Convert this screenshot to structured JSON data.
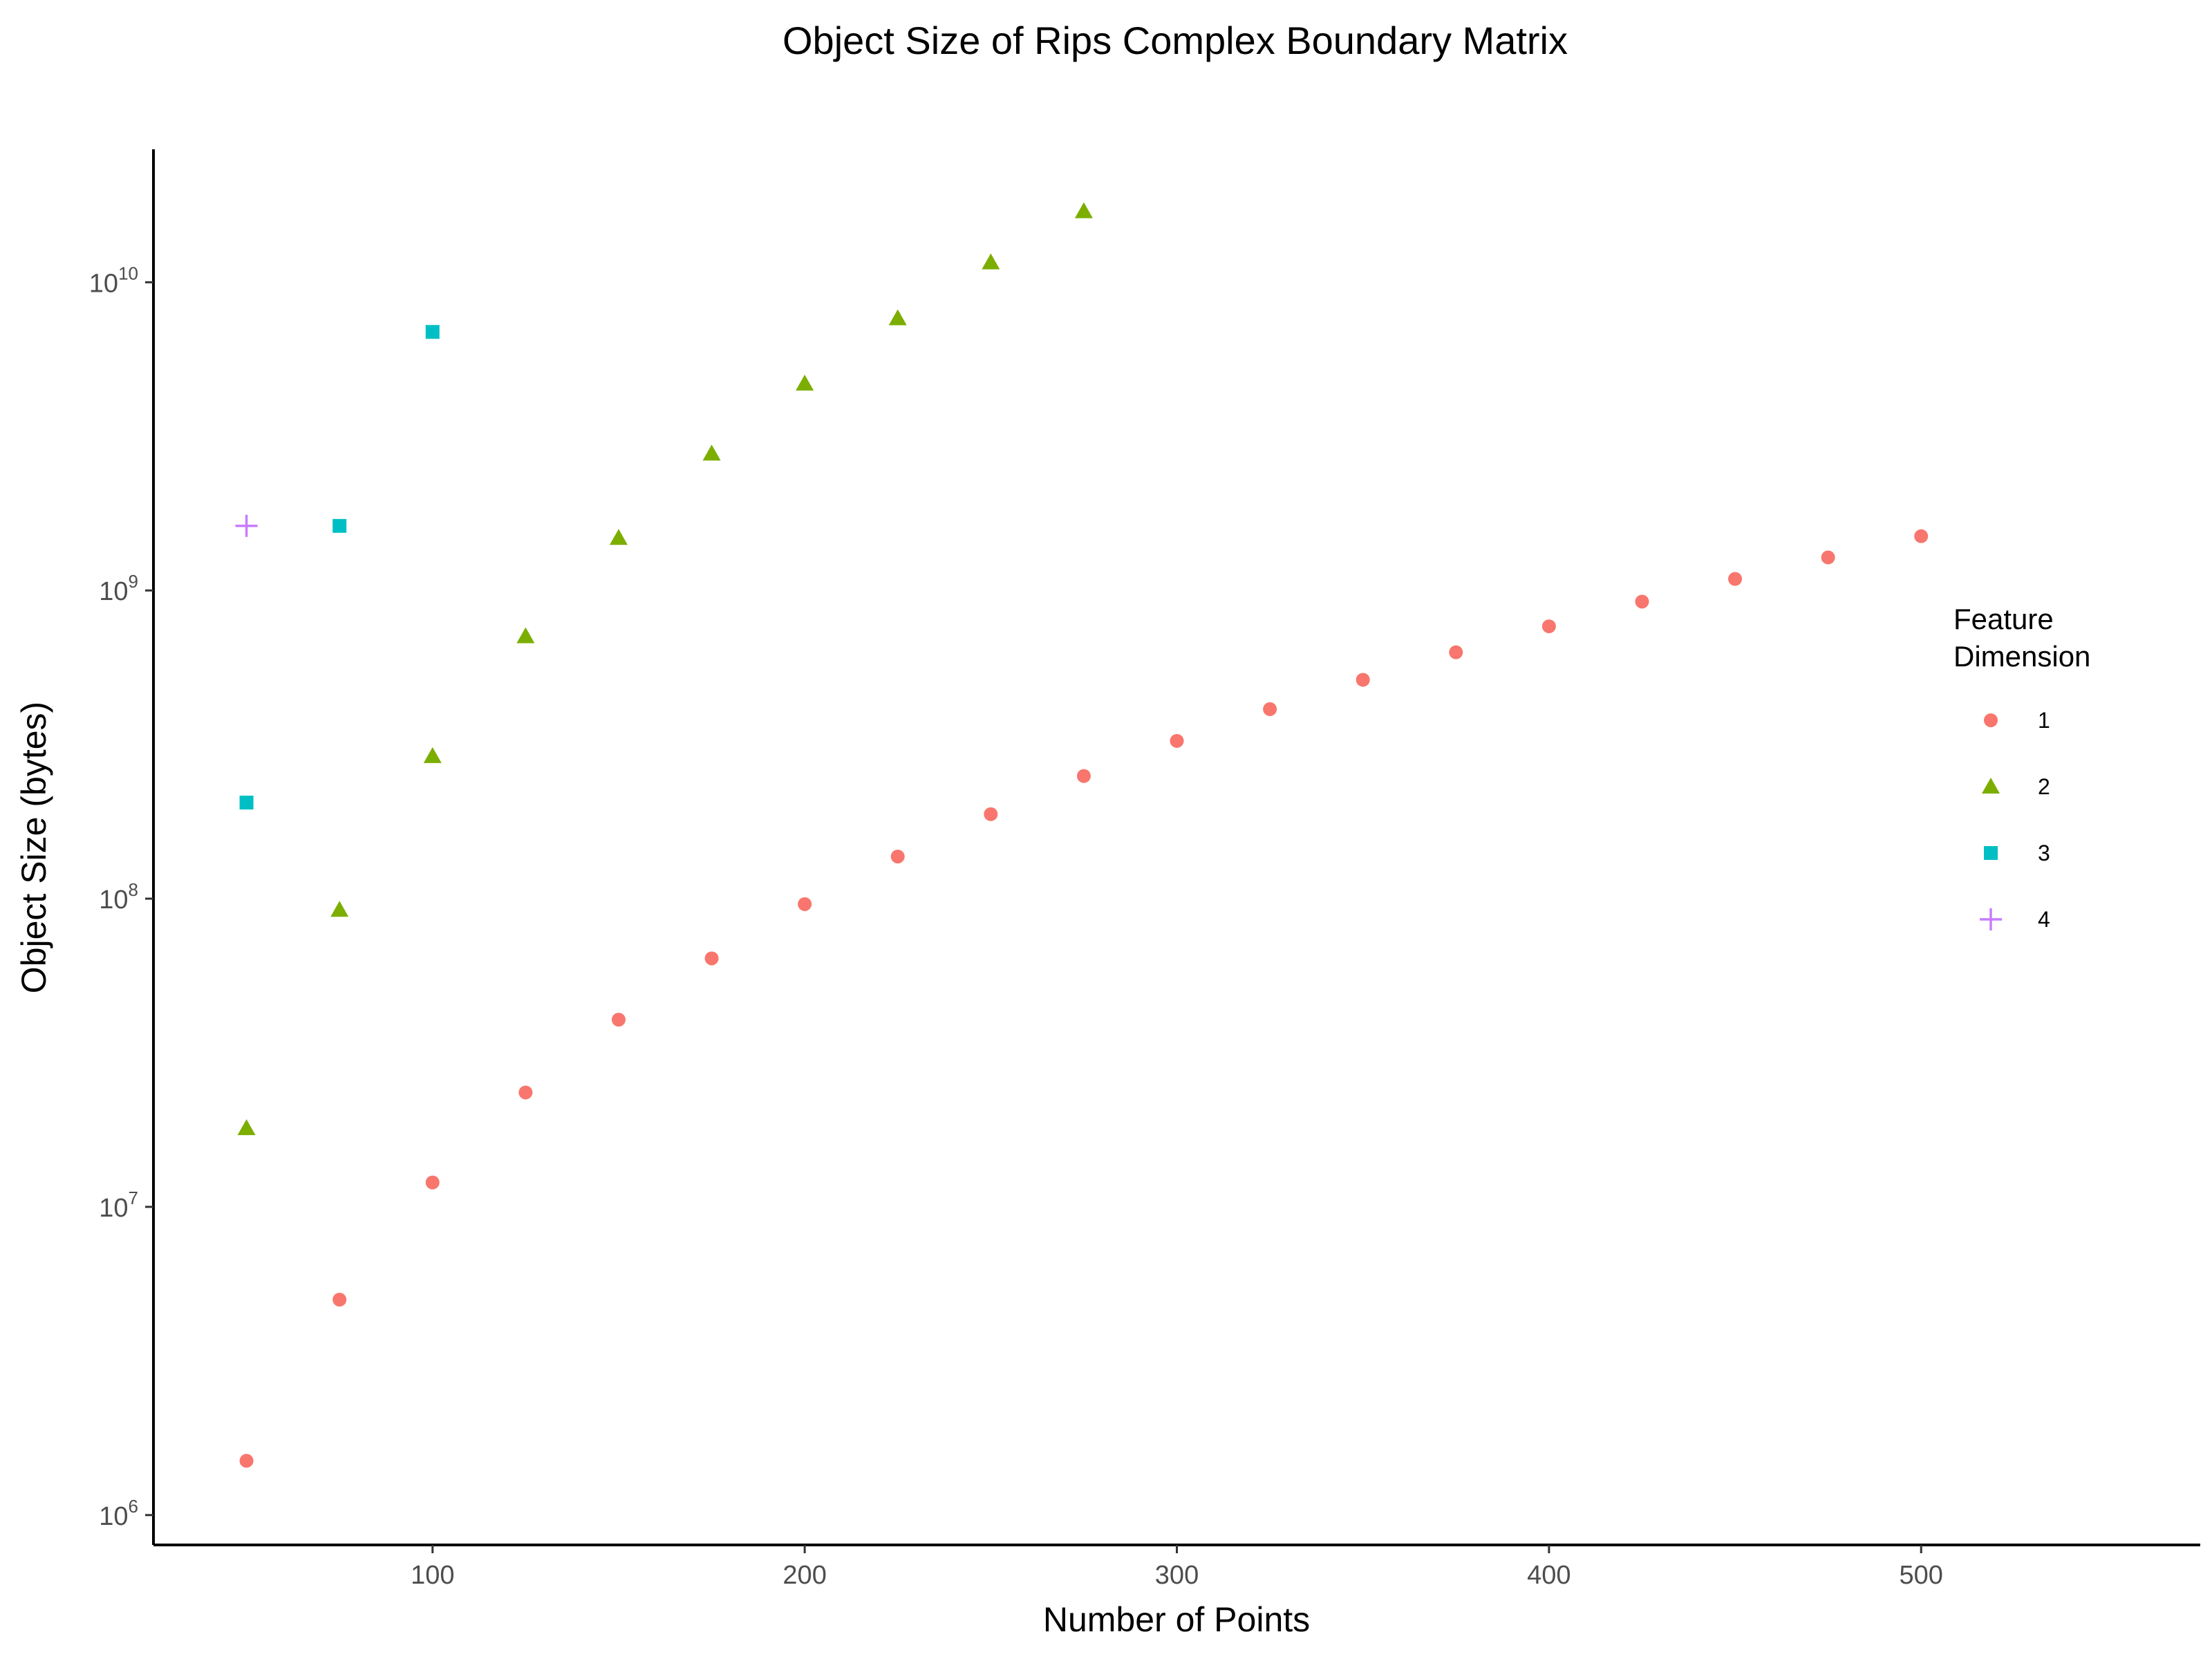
{
  "chart_data": {
    "type": "scatter",
    "title": "Object Size of Rips Complex Boundary Matrix",
    "xlabel": "Number of Points",
    "ylabel": "Object Size (bytes)",
    "x_scale": "linear",
    "y_scale": "log10",
    "xlim": [
      25,
      575
    ],
    "ylim": [
      800000,
      27000000000
    ],
    "x_ticks": [
      100,
      200,
      300,
      400,
      500
    ],
    "x_tick_labels": [
      "100",
      "200",
      "300",
      "400",
      "500"
    ],
    "y_ticks": [
      {
        "value": 1000000,
        "base": "10",
        "exp": "6"
      },
      {
        "value": 10000000,
        "base": "10",
        "exp": "7"
      },
      {
        "value": 100000000,
        "base": "10",
        "exp": "8"
      },
      {
        "value": 1000000000,
        "base": "10",
        "exp": "9"
      },
      {
        "value": 10000000000,
        "base": "10",
        "exp": "10"
      }
    ],
    "grid": false,
    "legend": {
      "title_lines": [
        "Feature",
        "Dimension"
      ],
      "placement": "right"
    },
    "series": [
      {
        "name": "1",
        "color": "#F8766D",
        "shape": "circle",
        "x": [
          50,
          75,
          100,
          125,
          150,
          175,
          200,
          225,
          250,
          275,
          300,
          325,
          350,
          375,
          400,
          425,
          450,
          475,
          500
        ],
        "y": [
          1500000,
          5000000,
          12000000,
          23500000,
          40500000,
          64000000,
          96000000,
          137000000,
          188000000,
          250000000,
          325000000,
          412000000,
          513000000,
          630000000,
          765000000,
          920000000,
          1090000000,
          1280000000,
          1500000000
        ]
      },
      {
        "name": "2",
        "color": "#7CAE00",
        "shape": "triangle",
        "x": [
          50,
          75,
          100,
          125,
          150,
          175,
          200,
          225,
          250,
          275
        ],
        "y": [
          18000000,
          92000000,
          290000000,
          710000000,
          1480000000,
          2780000000,
          4690000000,
          7640000000,
          11600000000,
          17000000000
        ]
      },
      {
        "name": "3",
        "color": "#00BFC4",
        "shape": "square",
        "x": [
          50,
          75,
          100
        ],
        "y": [
          205000000,
          1620000000,
          6900000000
        ]
      },
      {
        "name": "4",
        "color": "#C77CFF",
        "shape": "plus",
        "x": [
          50
        ],
        "y": [
          1620000000
        ]
      }
    ]
  }
}
